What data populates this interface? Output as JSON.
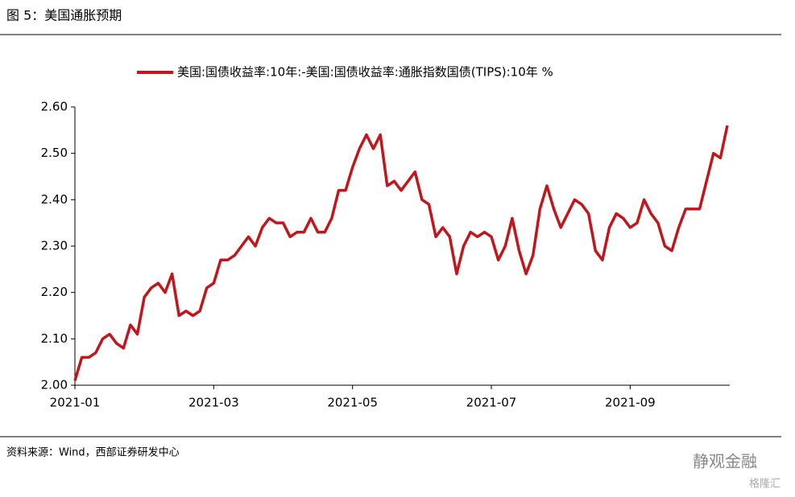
{
  "header": {
    "title": "图 5：美国通胀预期"
  },
  "chart_data": {
    "type": "line",
    "legend": "美国:国债收益率:10年:-美国:国债收益率:通胀指数国债(TIPS):10年 %",
    "categories": [
      "2021-01",
      null,
      null,
      null,
      null,
      null,
      null,
      null,
      null,
      null,
      null,
      null,
      null,
      null,
      null,
      null,
      null,
      null,
      null,
      null,
      "2021-03",
      null,
      null,
      null,
      null,
      null,
      null,
      null,
      null,
      null,
      null,
      null,
      null,
      null,
      null,
      null,
      null,
      null,
      null,
      null,
      "2021-05",
      null,
      null,
      null,
      null,
      null,
      null,
      null,
      null,
      null,
      null,
      null,
      null,
      null,
      null,
      null,
      null,
      null,
      null,
      null,
      "2021-07",
      null,
      null,
      null,
      null,
      null,
      null,
      null,
      null,
      null,
      null,
      null,
      null,
      null,
      null,
      null,
      null,
      null,
      null,
      null,
      "2021-09",
      null,
      null,
      null,
      null,
      null,
      null,
      null,
      null,
      null,
      null,
      null,
      null,
      null,
      null
    ],
    "series": [
      {
        "name": "美国:国债收益率:10年:-美国:国债收益率:通胀指数国债(TIPS):10年 %",
        "color": "#c0161c",
        "values": [
          2.01,
          2.06,
          2.06,
          2.07,
          2.1,
          2.11,
          2.09,
          2.08,
          2.13,
          2.11,
          2.19,
          2.21,
          2.22,
          2.2,
          2.24,
          2.15,
          2.16,
          2.15,
          2.16,
          2.21,
          2.22,
          2.27,
          2.27,
          2.28,
          2.3,
          2.32,
          2.3,
          2.34,
          2.36,
          2.35,
          2.35,
          2.32,
          2.33,
          2.33,
          2.36,
          2.33,
          2.33,
          2.36,
          2.42,
          2.42,
          2.47,
          2.51,
          2.54,
          2.51,
          2.54,
          2.43,
          2.44,
          2.42,
          2.44,
          2.46,
          2.4,
          2.39,
          2.32,
          2.34,
          2.32,
          2.24,
          2.3,
          2.33,
          2.32,
          2.33,
          2.32,
          2.27,
          2.3,
          2.36,
          2.29,
          2.24,
          2.28,
          2.38,
          2.43,
          2.38,
          2.34,
          2.37,
          2.4,
          2.39,
          2.37,
          2.29,
          2.27,
          2.34,
          2.37,
          2.36,
          2.34,
          2.35,
          2.4,
          2.37,
          2.35,
          2.3,
          2.29,
          2.34,
          2.38,
          2.38,
          2.38,
          2.44,
          2.5,
          2.49,
          2.56
        ]
      }
    ],
    "ylim": [
      2.0,
      2.6
    ],
    "yticks": [
      {
        "value": 2.0,
        "label": "2.00"
      },
      {
        "value": 2.1,
        "label": "2.10"
      },
      {
        "value": 2.2,
        "label": "2.20"
      },
      {
        "value": 2.3,
        "label": "2.30"
      },
      {
        "value": 2.4,
        "label": "2.40"
      },
      {
        "value": 2.5,
        "label": "2.50"
      },
      {
        "value": 2.6,
        "label": "2.60"
      }
    ]
  },
  "footer": {
    "source": "资料来源：Wind，西部证券研发中心",
    "watermark": "静观金融",
    "watermark2": "格隆汇"
  }
}
